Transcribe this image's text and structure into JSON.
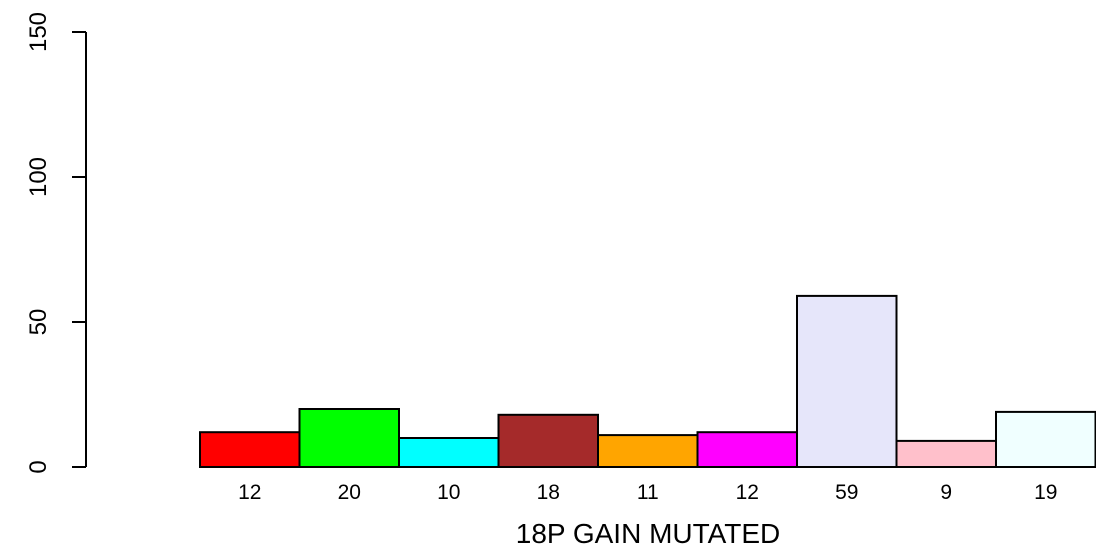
{
  "chart_data": {
    "type": "bar",
    "title": "",
    "xlabel": "18P GAIN MUTATED",
    "ylabel": "",
    "ylim": [
      0,
      150
    ],
    "yticks": [
      0,
      50,
      100,
      150
    ],
    "grid": false,
    "legend": "none",
    "categories": [
      "12",
      "20",
      "10",
      "18",
      "11",
      "12",
      "59",
      "9",
      "19"
    ],
    "values": [
      12,
      20,
      10,
      18,
      11,
      12,
      59,
      9,
      19
    ],
    "colors": [
      "#ff0000",
      "#00ff00",
      "#00ffff",
      "#a52a2a",
      "#ffa500",
      "#ff00ff",
      "#e6e6fa",
      "#ffc0cb",
      "#f0ffff"
    ]
  }
}
